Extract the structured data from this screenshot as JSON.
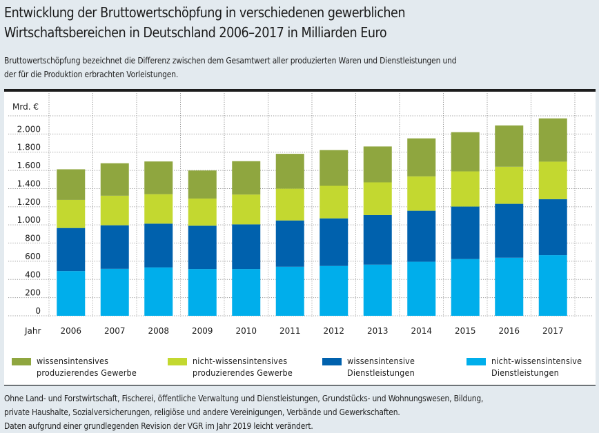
{
  "title": {
    "line1": "Entwicklung der Bruttowertschöpfung in verschiedenen gewerblichen",
    "line2": "Wirtschaftsbereichen in Deutschland 2006–2017 in Milliarden Euro"
  },
  "subtitle": {
    "line1": "Bruttowertschöpfung bezeichnet die Differenz zwischen dem Gesamtwert aller produzierten Waren und Dienstleistungen und",
    "line2": "der für die Produktion erbrachten Vorleistungen."
  },
  "footnote": {
    "line1": "Ohne Land- und Forstwirtschaft, Fischerei, öffentliche Verwaltung und Dienstleistungen, Grundstücks- und Wohnungswesen, Bildung,",
    "line2": "private Haushalte, Sozialversicherungen, religiöse und andere Vereinigungen, Verbände und Gewerkschaften.",
    "line3": "Daten aufgrund einer grundlegenden Revision der VGR im Jahr 2019 leicht verändert."
  },
  "chart_data": {
    "type": "bar",
    "stacked": true,
    "title": "Entwicklung der Bruttowertschöpfung in verschiedenen gewerblichen Wirtschaftsbereichen in Deutschland 2006–2017 in Milliarden Euro",
    "xlabel": "Jahr",
    "ylabel": "Mrd. €",
    "ylim": [
      0,
      2200
    ],
    "yticks": [
      0,
      200,
      400,
      600,
      800,
      1000,
      1200,
      1400,
      1600,
      1800,
      2000
    ],
    "ytick_labels": [
      "0",
      "200",
      "400",
      "600",
      "800",
      "1.000",
      "1.200",
      "1.400",
      "1.600",
      "1.800",
      "2.000"
    ],
    "grid": true,
    "legend_position": "bottom",
    "categories": [
      "2006",
      "2007",
      "2008",
      "2009",
      "2010",
      "2011",
      "2012",
      "2013",
      "2014",
      "2015",
      "2016",
      "2017"
    ],
    "series": [
      {
        "name": "nicht-wissensintensive Dienstleistungen",
        "label_lines": [
          "nicht-wissensintensive",
          "Dienstleistungen"
        ],
        "color": "#00aeeb",
        "values": [
          492,
          517,
          532,
          515,
          515,
          540,
          548,
          563,
          595,
          624,
          639,
          667
        ]
      },
      {
        "name": "wissensintensive Dienstleistungen",
        "label_lines": [
          "wissensintensive",
          "Dienstleistungen"
        ],
        "color": "#0061ad",
        "values": [
          474,
          479,
          482,
          476,
          491,
          509,
          524,
          545,
          561,
          578,
          593,
          616
        ]
      },
      {
        "name": "nicht-wissensintensives produzierendes Gewerbe",
        "label_lines": [
          "nicht-wissensintensives",
          "produzierendes Gewerbe"
        ],
        "color": "#c3d830",
        "values": [
          309,
          325,
          324,
          299,
          328,
          350,
          358,
          360,
          378,
          387,
          408,
          413
        ]
      },
      {
        "name": "wissensintensives produzierendes Gewerbe",
        "label_lines": [
          "wissensintensives",
          "produzierendes Gewerbe"
        ],
        "color": "#8fa63f",
        "values": [
          337,
          357,
          360,
          309,
          367,
          383,
          393,
          395,
          418,
          431,
          454,
          476
        ]
      }
    ],
    "legend_order": [
      3,
      2,
      1,
      0
    ]
  }
}
